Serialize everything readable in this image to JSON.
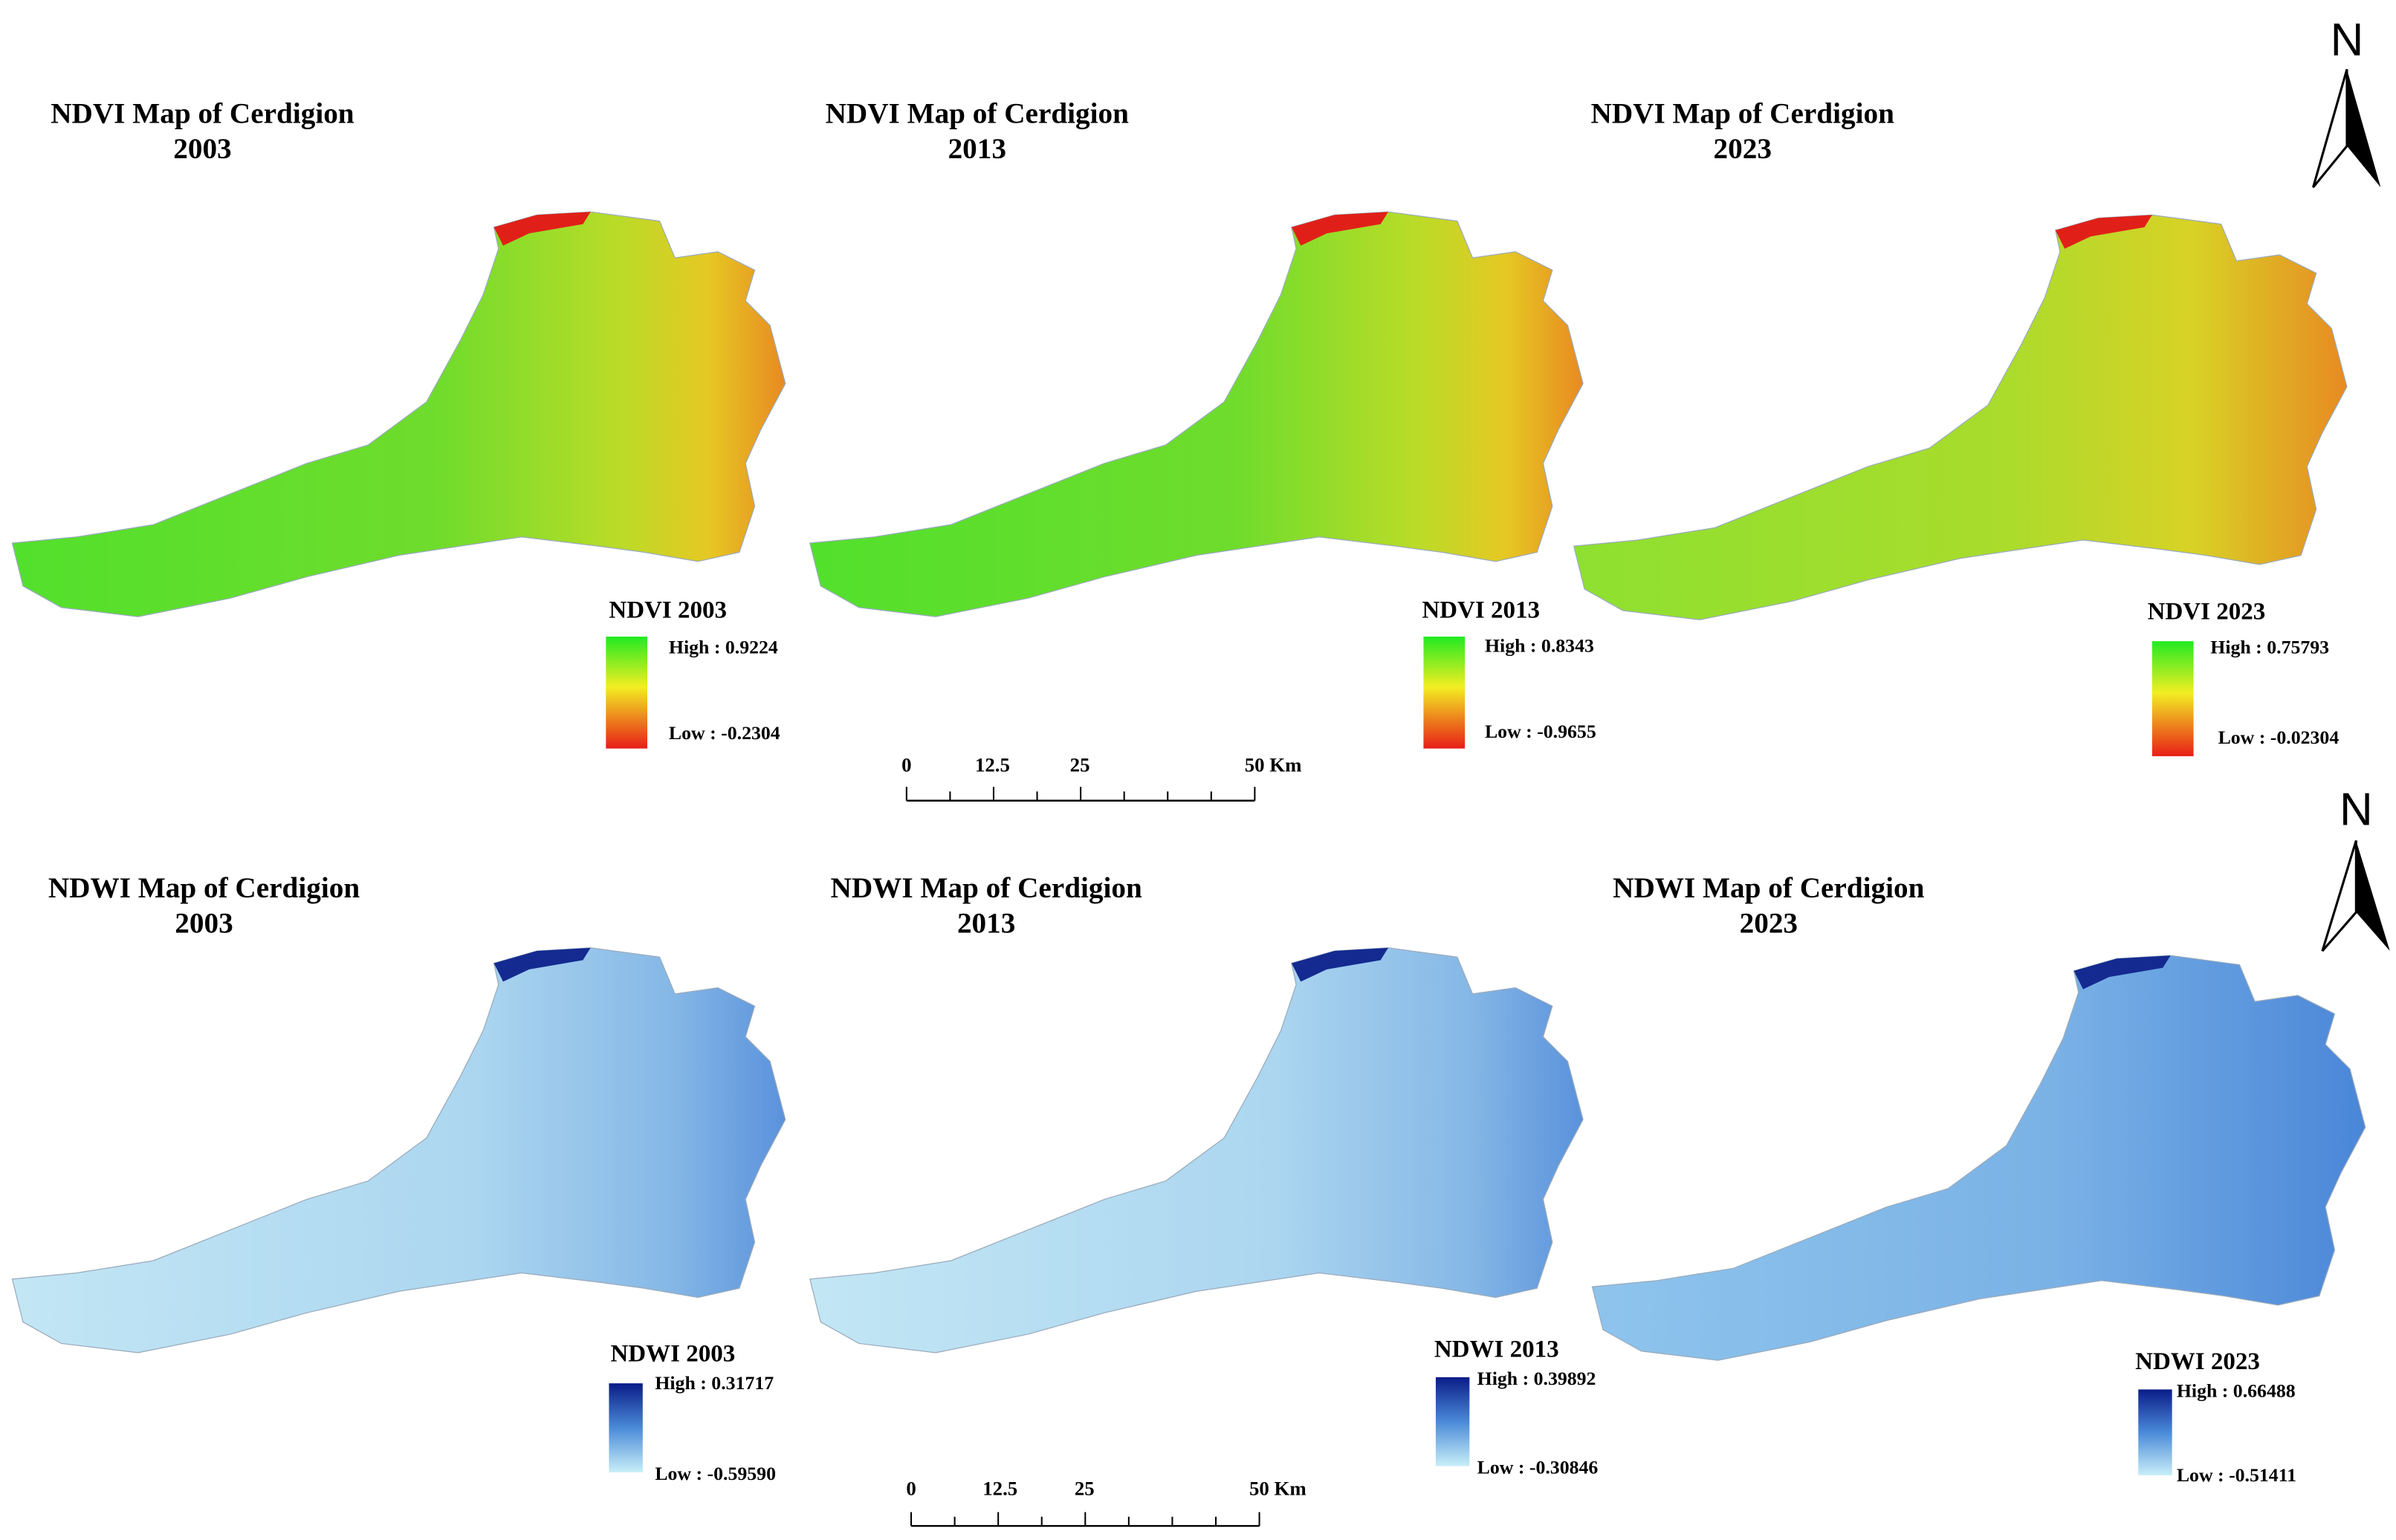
{
  "panels": [
    {
      "title": "NDVI Map of Cerdigion",
      "year": "2003",
      "legend": {
        "title": "NDVI 2003",
        "high": "High : 0.9224",
        "low": "Low : -0.2304"
      }
    },
    {
      "title": "NDVI Map of Cerdigion",
      "year": "2013",
      "legend": {
        "title": "NDVI 2013",
        "high": "High : 0.8343",
        "low": "Low : -0.9655"
      }
    },
    {
      "title": "NDVI Map of Cerdigion",
      "year": "2023",
      "legend": {
        "title": "NDVI 2023",
        "high": "High : 0.75793",
        "low": "Low : -0.02304"
      }
    },
    {
      "title": "NDWI Map of Cerdigion",
      "year": "2003",
      "legend": {
        "title": "NDWI 2003",
        "high": "High : 0.31717",
        "low": "Low : -0.59590"
      }
    },
    {
      "title": "NDWI Map of Cerdigion",
      "year": "2013",
      "legend": {
        "title": "NDWI 2013",
        "high": "High : 0.39892",
        "low": "Low : -0.30846"
      }
    },
    {
      "title": "NDWI Map of Cerdigion",
      "year": "2023",
      "legend": {
        "title": "NDWI 2023",
        "high": "High : 0.66488",
        "low": "Low : -0.51411"
      }
    }
  ],
  "scale_bars": [
    {
      "labels": [
        "0",
        "12.5",
        "25",
        "50 Km"
      ]
    },
    {
      "labels": [
        "0",
        "12.5",
        "25",
        "50 Km"
      ]
    }
  ],
  "north_arrows": [
    {
      "label": "N"
    },
    {
      "label": "N"
    }
  ]
}
